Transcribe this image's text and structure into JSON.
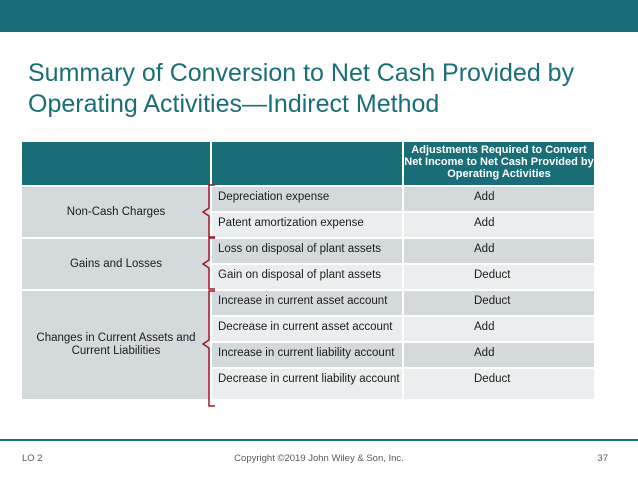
{
  "slide": {
    "title": "Summary of Conversion to Net Cash Provided by Operating Activities—Indirect Method"
  },
  "table": {
    "header": {
      "col1": "",
      "col2": "",
      "col3": "Adjustments Required to Convert Net Income to Net Cash Provided by Operating Activities"
    },
    "groups": [
      {
        "label": "Non-Cash Charges",
        "rows": [
          {
            "item": "Depreciation expense",
            "adjustment": "Add"
          },
          {
            "item": "Patent amortization expense",
            "adjustment": "Add"
          }
        ]
      },
      {
        "label": "Gains and Losses",
        "rows": [
          {
            "item": "Loss on disposal of plant assets",
            "adjustment": "Add"
          },
          {
            "item": "Gain on disposal of plant assets",
            "adjustment": "Deduct"
          }
        ]
      },
      {
        "label": "Changes in Current Assets and Current Liabilities",
        "rows": [
          {
            "item": "Increase in current asset account",
            "adjustment": "Deduct"
          },
          {
            "item": "Decrease in current asset account",
            "adjustment": "Add"
          },
          {
            "item": "Increase in current liability account",
            "adjustment": "Add"
          },
          {
            "item": "Decrease in current liability account",
            "adjustment": "Deduct"
          }
        ]
      }
    ]
  },
  "footer": {
    "lo": "LO 2",
    "copyright": "Copyright ©2019 John Wiley & Son, Inc.",
    "page": "37"
  },
  "colors": {
    "accent": "#1a6e78",
    "row_dark": "#d4dadc",
    "row_light": "#ebeeef",
    "bracket": "#a3182c"
  }
}
